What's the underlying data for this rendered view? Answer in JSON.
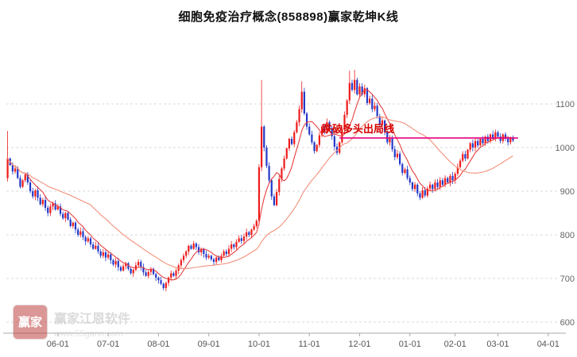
{
  "page": {
    "title": "细胞免疫治疗概念(858898)赢家乾坤K线"
  },
  "watermark": {
    "brand": "赢家江恩软件",
    "url": "www.55gann.com",
    "logo_text": "赢家"
  },
  "annotation": {
    "label": "跌破多头出局线",
    "price": 1022,
    "from_index": 132,
    "to_index": 203,
    "label_index": 125,
    "line_color": "#e6007e",
    "label_color": "#d40000"
  },
  "chart_data": {
    "type": "candlestick",
    "title": "细胞免疫治疗概念(858898)赢家乾坤K线",
    "y_axis": {
      "side": "right",
      "grid": "dashed",
      "ticks": [
        600,
        700,
        800,
        900,
        1000,
        1100
      ]
    },
    "x_axis": {
      "ticks": [
        {
          "label": "06-01",
          "index": 20
        },
        {
          "label": "07-01",
          "index": 40
        },
        {
          "label": "08-01",
          "index": 60
        },
        {
          "label": "09-01",
          "index": 80
        },
        {
          "label": "10-01",
          "index": 100
        },
        {
          "label": "11-01",
          "index": 120
        },
        {
          "label": "12-01",
          "index": 140
        },
        {
          "label": "01-01",
          "index": 160
        },
        {
          "label": "02-01",
          "index": 178
        },
        {
          "label": "03-01",
          "index": 195
        },
        {
          "label": "04-01",
          "index": 215
        }
      ]
    },
    "total_slots": 220,
    "colors": {
      "up": "#ee1b1b",
      "down": "#2238c8"
    },
    "candles": {
      "open_rule": "previous_close",
      "wick": 7,
      "closes": [
        975,
        960,
        945,
        952,
        930,
        910,
        925,
        938,
        920,
        900,
        888,
        902,
        885,
        870,
        880,
        862,
        850,
        865,
        872,
        858,
        865,
        848,
        838,
        850,
        835,
        820,
        828,
        812,
        800,
        808,
        795,
        785,
        792,
        778,
        768,
        775,
        762,
        752,
        760,
        748,
        755,
        742,
        732,
        740,
        726,
        718,
        728,
        735,
        722,
        712,
        720,
        730,
        738,
        726,
        714,
        706,
        715,
        722,
        710,
        702,
        696,
        688,
        678,
        690,
        702,
        712,
        706,
        718,
        730,
        742,
        752,
        762,
        775,
        768,
        780,
        772,
        760,
        768,
        756,
        748,
        752,
        744,
        738,
        748,
        742,
        752,
        762,
        756,
        768,
        778,
        772,
        784,
        792,
        786,
        796,
        806,
        800,
        812,
        820,
        832,
        955,
        1048,
        1000,
        958,
        925,
        888,
        868,
        898,
        928,
        952,
        975,
        998,
        1020,
        1008,
        1035,
        1058,
        1088,
        1128,
        1078,
        1048,
        1030,
        1012,
        992,
        1006,
        1028,
        1048,
        1038,
        1058,
        1044,
        1026,
        1002,
        988,
        1012,
        1042,
        1075,
        1108,
        1148,
        1132,
        1155,
        1122,
        1140,
        1122,
        1136,
        1102,
        1112,
        1088,
        1096,
        1072,
        1052,
        1062,
        1036,
        1012,
        1022,
        996,
        978,
        986,
        962,
        942,
        950,
        930,
        920,
        905,
        915,
        895,
        885,
        902,
        890,
        906,
        915,
        905,
        920,
        910,
        925,
        915,
        930,
        920,
        935,
        925,
        940,
        955,
        970,
        985,
        975,
        995,
        1010,
        1000,
        1015,
        1005,
        1020,
        1010,
        1025,
        1015,
        1030,
        1020,
        1035,
        1025,
        1015,
        1030,
        1020,
        1012,
        1022,
        1016
      ],
      "overrides": {
        "0": [
          930,
          1038,
          922,
          975
        ],
        "100": [
          832,
          962,
          824,
          955
        ],
        "101": [
          955,
          1155,
          946,
          1048
        ],
        "117": [
          1088,
          1152,
          1080,
          1128
        ],
        "136": [
          1108,
          1176,
          1100,
          1148
        ],
        "138": [
          1132,
          1178,
          1124,
          1155
        ]
      }
    },
    "moving_averages": [
      {
        "name": "MA8",
        "window": 8,
        "color": "#e84040"
      },
      {
        "name": "MA34",
        "window": 34,
        "color": "#f2907a"
      }
    ]
  }
}
